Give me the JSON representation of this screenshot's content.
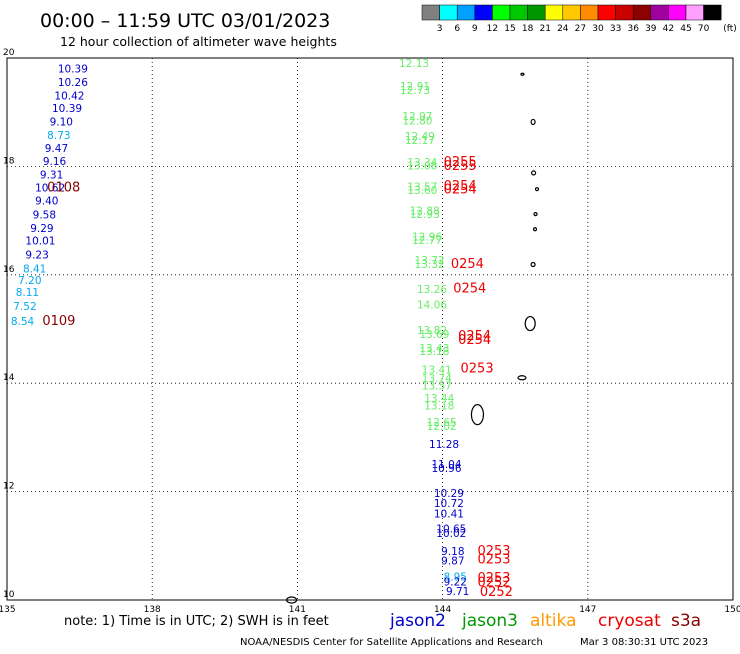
{
  "header": {
    "title": "00:00 – 11:59 UTC 03/01/2023",
    "subtitle": "12 hour collection of altimeter wave heights"
  },
  "legend": {
    "unit": "(ft)",
    "bins": [
      {
        "label": "3",
        "color": "#808080"
      },
      {
        "label": "6",
        "color": "#00ffff"
      },
      {
        "label": "9",
        "color": "#00a0ff"
      },
      {
        "label": "12",
        "color": "#0000ff"
      },
      {
        "label": "15",
        "color": "#00ff00"
      },
      {
        "label": "18",
        "color": "#00c800"
      },
      {
        "label": "21",
        "color": "#009600"
      },
      {
        "label": "24",
        "color": "#ffff00"
      },
      {
        "label": "27",
        "color": "#ffc800"
      },
      {
        "label": "30",
        "color": "#ff8c00"
      },
      {
        "label": "33",
        "color": "#ff0000"
      },
      {
        "label": "36",
        "color": "#c80000"
      },
      {
        "label": "39",
        "color": "#8c0000"
      },
      {
        "label": "42",
        "color": "#a000a0"
      },
      {
        "label": "45",
        "color": "#ff00ff"
      },
      {
        "label": "70",
        "color": "#ffa0ff"
      },
      {
        "label": "",
        "color": "#000000"
      }
    ]
  },
  "map": {
    "lon_range": [
      135,
      150
    ],
    "lat_range": [
      10,
      20
    ],
    "lon_ticks": [
      "135",
      "138",
      "141",
      "144",
      "147",
      "150"
    ],
    "lat_ticks": [
      "20",
      "18",
      "16",
      "14",
      "12",
      "10"
    ]
  },
  "colors": {
    "jason2": "#0000cc",
    "jason2_light": "#00aaee",
    "jason3": "#66ee66",
    "altika": "#ff9900",
    "cryosat": "#ee0000",
    "s3a": "#880000"
  },
  "observations": [
    {
      "lon": 136.05,
      "lat": 19.81,
      "text": "10.39",
      "color": "#0000cc"
    },
    {
      "lon": 136.05,
      "lat": 19.56,
      "text": "10.26",
      "color": "#0000cc"
    },
    {
      "lon": 135.98,
      "lat": 19.31,
      "text": "10.42",
      "color": "#0000cc"
    },
    {
      "lon": 135.93,
      "lat": 19.08,
      "text": "10.39",
      "color": "#0000cc"
    },
    {
      "lon": 135.88,
      "lat": 18.83,
      "text": "9.10",
      "color": "#0000cc"
    },
    {
      "lon": 135.83,
      "lat": 18.58,
      "text": "8.73",
      "color": "#00aaee"
    },
    {
      "lon": 135.78,
      "lat": 18.34,
      "text": "9.47",
      "color": "#0000cc"
    },
    {
      "lon": 135.74,
      "lat": 18.1,
      "text": "9.16",
      "color": "#0000cc"
    },
    {
      "lon": 135.68,
      "lat": 17.85,
      "text": "9.31",
      "color": "#0000cc"
    },
    {
      "lon": 135.58,
      "lat": 17.61,
      "text": "10.62",
      "color": "#0000cc"
    },
    {
      "lon": 135.58,
      "lat": 17.37,
      "text": "9.40",
      "color": "#0000cc"
    },
    {
      "lon": 135.53,
      "lat": 17.11,
      "text": "9.58",
      "color": "#0000cc"
    },
    {
      "lon": 135.48,
      "lat": 16.86,
      "text": "9.29",
      "color": "#0000cc"
    },
    {
      "lon": 135.38,
      "lat": 16.63,
      "text": "10.01",
      "color": "#0000cc"
    },
    {
      "lon": 135.38,
      "lat": 16.37,
      "text": "9.23",
      "color": "#0000cc"
    },
    {
      "lon": 135.33,
      "lat": 16.12,
      "text": "8.41",
      "color": "#00aaee"
    },
    {
      "lon": 135.23,
      "lat": 15.9,
      "text": "7.20",
      "color": "#00aaee"
    },
    {
      "lon": 135.18,
      "lat": 15.68,
      "text": "8.11",
      "color": "#00aaee"
    },
    {
      "lon": 135.13,
      "lat": 15.42,
      "text": "7.52",
      "color": "#00aaee"
    },
    {
      "lon": 135.08,
      "lat": 15.15,
      "text": "8.54",
      "color": "#00aaee"
    },
    {
      "lon": 135.83,
      "lat": 17.61,
      "text": "0108",
      "color": "#880000",
      "big": true
    },
    {
      "lon": 135.73,
      "lat": 15.15,
      "text": "0109",
      "color": "#880000",
      "big": true
    },
    {
      "lon": 143.1,
      "lat": 19.91,
      "text": "12.13",
      "color": "#66ee66"
    },
    {
      "lon": 143.12,
      "lat": 19.48,
      "text": "12.91",
      "color": "#66ee66"
    },
    {
      "lon": 143.12,
      "lat": 19.41,
      "text": "12.73",
      "color": "#66ee66"
    },
    {
      "lon": 143.17,
      "lat": 18.93,
      "text": "12.97",
      "color": "#66ee66"
    },
    {
      "lon": 143.17,
      "lat": 18.85,
      "text": "12.80",
      "color": "#66ee66"
    },
    {
      "lon": 143.22,
      "lat": 18.56,
      "text": "12.49",
      "color": "#66ee66"
    },
    {
      "lon": 143.22,
      "lat": 18.49,
      "text": "12.17",
      "color": "#66ee66"
    },
    {
      "lon": 143.27,
      "lat": 18.08,
      "text": "13.34",
      "color": "#66ee66"
    },
    {
      "lon": 143.27,
      "lat": 18.02,
      "text": "13.06",
      "color": "#66ee66"
    },
    {
      "lon": 143.27,
      "lat": 17.63,
      "text": "13.57",
      "color": "#66ee66"
    },
    {
      "lon": 143.27,
      "lat": 17.56,
      "text": "13.60",
      "color": "#66ee66"
    },
    {
      "lon": 143.32,
      "lat": 17.19,
      "text": "12.88",
      "color": "#66ee66"
    },
    {
      "lon": 143.32,
      "lat": 17.12,
      "text": "12.93",
      "color": "#66ee66"
    },
    {
      "lon": 143.37,
      "lat": 16.71,
      "text": "12.96",
      "color": "#66ee66"
    },
    {
      "lon": 143.37,
      "lat": 16.64,
      "text": "12.77",
      "color": "#66ee66"
    },
    {
      "lon": 143.42,
      "lat": 16.27,
      "text": "13.72",
      "color": "#66ee66"
    },
    {
      "lon": 143.42,
      "lat": 16.2,
      "text": "13.32",
      "color": "#66ee66"
    },
    {
      "lon": 143.47,
      "lat": 15.74,
      "text": "13.26",
      "color": "#66ee66"
    },
    {
      "lon": 143.47,
      "lat": 15.45,
      "text": "14.06",
      "color": "#66ee66"
    },
    {
      "lon": 143.47,
      "lat": 14.98,
      "text": "13.82",
      "color": "#66ee66"
    },
    {
      "lon": 143.52,
      "lat": 14.91,
      "text": "13.69",
      "color": "#66ee66"
    },
    {
      "lon": 143.52,
      "lat": 14.65,
      "text": "13.43",
      "color": "#66ee66"
    },
    {
      "lon": 143.52,
      "lat": 14.59,
      "text": "13.18",
      "color": "#66ee66"
    },
    {
      "lon": 143.57,
      "lat": 14.25,
      "text": "13.41",
      "color": "#66ee66"
    },
    {
      "lon": 143.57,
      "lat": 14.1,
      "text": "13.74",
      "color": "#66ee66"
    },
    {
      "lon": 143.57,
      "lat": 13.96,
      "text": "13.57",
      "color": "#66ee66"
    },
    {
      "lon": 143.62,
      "lat": 13.73,
      "text": "13.44",
      "color": "#66ee66"
    },
    {
      "lon": 143.62,
      "lat": 13.59,
      "text": "13.18",
      "color": "#66ee66"
    },
    {
      "lon": 143.67,
      "lat": 13.28,
      "text": "12.65",
      "color": "#66ee66"
    },
    {
      "lon": 143.67,
      "lat": 13.21,
      "text": "12.02",
      "color": "#66ee66"
    },
    {
      "lon": 143.72,
      "lat": 12.88,
      "text": "11.28",
      "color": "#0000cc"
    },
    {
      "lon": 143.77,
      "lat": 12.51,
      "text": "11.04",
      "color": "#0000cc"
    },
    {
      "lon": 143.77,
      "lat": 12.44,
      "text": "10.96",
      "color": "#0000cc"
    },
    {
      "lon": 143.82,
      "lat": 11.97,
      "text": "10.29",
      "color": "#0000cc"
    },
    {
      "lon": 143.82,
      "lat": 11.79,
      "text": "10.72",
      "color": "#0000cc"
    },
    {
      "lon": 143.82,
      "lat": 11.6,
      "text": "10.41",
      "color": "#0000cc"
    },
    {
      "lon": 143.87,
      "lat": 11.32,
      "text": "10.65",
      "color": "#0000cc"
    },
    {
      "lon": 143.87,
      "lat": 11.24,
      "text": "10.02",
      "color": "#0000cc"
    },
    {
      "lon": 143.97,
      "lat": 10.9,
      "text": "9.18",
      "color": "#0000cc"
    },
    {
      "lon": 143.97,
      "lat": 10.73,
      "text": "9.87",
      "color": "#0000cc"
    },
    {
      "lon": 144.02,
      "lat": 10.43,
      "text": "8.95",
      "color": "#00aaee"
    },
    {
      "lon": 144.02,
      "lat": 10.34,
      "text": "9.22",
      "color": "#0000cc"
    },
    {
      "lon": 144.07,
      "lat": 10.17,
      "text": "9.71",
      "color": "#0000cc"
    },
    {
      "lon": 144.02,
      "lat": 18.08,
      "text": "0255",
      "color": "#ee0000",
      "big": true
    },
    {
      "lon": 144.02,
      "lat": 18.01,
      "text": "0255",
      "color": "#ee0000",
      "big": true
    },
    {
      "lon": 144.02,
      "lat": 17.64,
      "text": "0254",
      "color": "#ee0000",
      "big": true
    },
    {
      "lon": 144.02,
      "lat": 17.57,
      "text": "0254",
      "color": "#ee0000",
      "big": true
    },
    {
      "lon": 144.17,
      "lat": 16.2,
      "text": "0254",
      "color": "#ee0000",
      "big": true
    },
    {
      "lon": 144.22,
      "lat": 15.75,
      "text": "0254",
      "color": "#ee0000",
      "big": true
    },
    {
      "lon": 144.32,
      "lat": 14.87,
      "text": "0254",
      "color": "#ee0000",
      "big": true
    },
    {
      "lon": 144.32,
      "lat": 14.8,
      "text": "0254",
      "color": "#ee0000",
      "big": true
    },
    {
      "lon": 144.37,
      "lat": 14.27,
      "text": "0253",
      "color": "#ee0000",
      "big": true
    },
    {
      "lon": 144.72,
      "lat": 10.9,
      "text": "0253",
      "color": "#ee0000",
      "big": true
    },
    {
      "lon": 144.72,
      "lat": 10.75,
      "text": "0253",
      "color": "#ee0000",
      "big": true
    },
    {
      "lon": 144.72,
      "lat": 10.41,
      "text": "0253",
      "color": "#ee0000",
      "big": true
    },
    {
      "lon": 144.72,
      "lat": 10.32,
      "text": "0252",
      "color": "#ee0000",
      "big": true
    },
    {
      "lon": 144.77,
      "lat": 10.15,
      "text": "0252",
      "color": "#ee0000",
      "big": true
    }
  ],
  "islands": [
    {
      "lon": 145.65,
      "lat": 19.7,
      "w": 3,
      "h": 2
    },
    {
      "lon": 145.87,
      "lat": 18.82,
      "w": 4,
      "h": 5
    },
    {
      "lon": 145.88,
      "lat": 17.88,
      "w": 4,
      "h": 4
    },
    {
      "lon": 145.92,
      "lat": 17.12,
      "w": 3,
      "h": 3
    },
    {
      "lon": 145.91,
      "lat": 16.84,
      "w": 3,
      "h": 3
    },
    {
      "lon": 145.87,
      "lat": 16.19,
      "w": 4,
      "h": 4
    },
    {
      "lon": 145.64,
      "lat": 14.1,
      "w": 8,
      "h": 4
    },
    {
      "lon": 144.72,
      "lat": 13.42,
      "w": 12,
      "h": 20
    },
    {
      "lon": 145.81,
      "lat": 15.1,
      "w": 10,
      "h": 14
    },
    {
      "lon": 145.95,
      "lat": 17.58,
      "w": 3,
      "h": 3
    },
    {
      "lon": 140.88,
      "lat": 10.0,
      "w": 10,
      "h": 6
    }
  ],
  "footer": {
    "note": "note: 1) Time is in UTC; 2) SWH is in feet",
    "sats": [
      {
        "name": "jason2",
        "color": "#0000cc"
      },
      {
        "name": "jason3",
        "color": "#009900"
      },
      {
        "name": "altika",
        "color": "#ff9900"
      },
      {
        "name": "cryosat",
        "color": "#ee0000"
      },
      {
        "name": "s3a",
        "color": "#880000"
      }
    ],
    "credit": "NOAA/NESDIS Center for Satellite Applications and Research",
    "timestamp": "Mar  3 08:30:31 UTC 2023"
  }
}
